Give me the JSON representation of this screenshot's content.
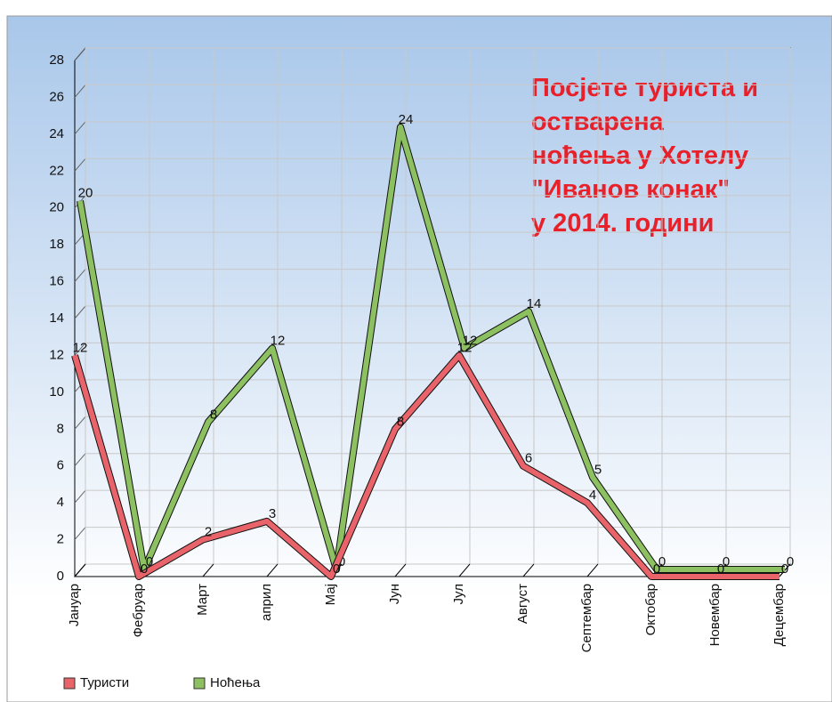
{
  "chart_data": {
    "type": "line",
    "title": [
      "Посјете туриста и",
      "остварена",
      "ноћења у Хотелу",
      "\"Иванов конак\"",
      "у 2014. години"
    ],
    "categories": [
      "Јануар",
      "Фебруар",
      "Март",
      "април",
      "Мај",
      "Јун",
      "Јул",
      "Август",
      "Септембар",
      "Октобар",
      "Новембар",
      "Децембар"
    ],
    "series": [
      {
        "name": "Туристи",
        "color": "#e8646a",
        "values": [
          12,
          0,
          2,
          3,
          0,
          8,
          12,
          6,
          4,
          0,
          0,
          0
        ]
      },
      {
        "name": "Ноћења",
        "color": "#8cc060",
        "values": [
          20,
          0,
          8,
          12,
          0,
          24,
          12,
          14,
          5,
          0,
          0,
          0
        ]
      }
    ],
    "ylim": [
      0,
      28
    ],
    "yticks": [
      0,
      2,
      4,
      6,
      8,
      10,
      12,
      14,
      16,
      18,
      20,
      22,
      24,
      26,
      28
    ],
    "grid": true,
    "legend": "bottom-left"
  }
}
